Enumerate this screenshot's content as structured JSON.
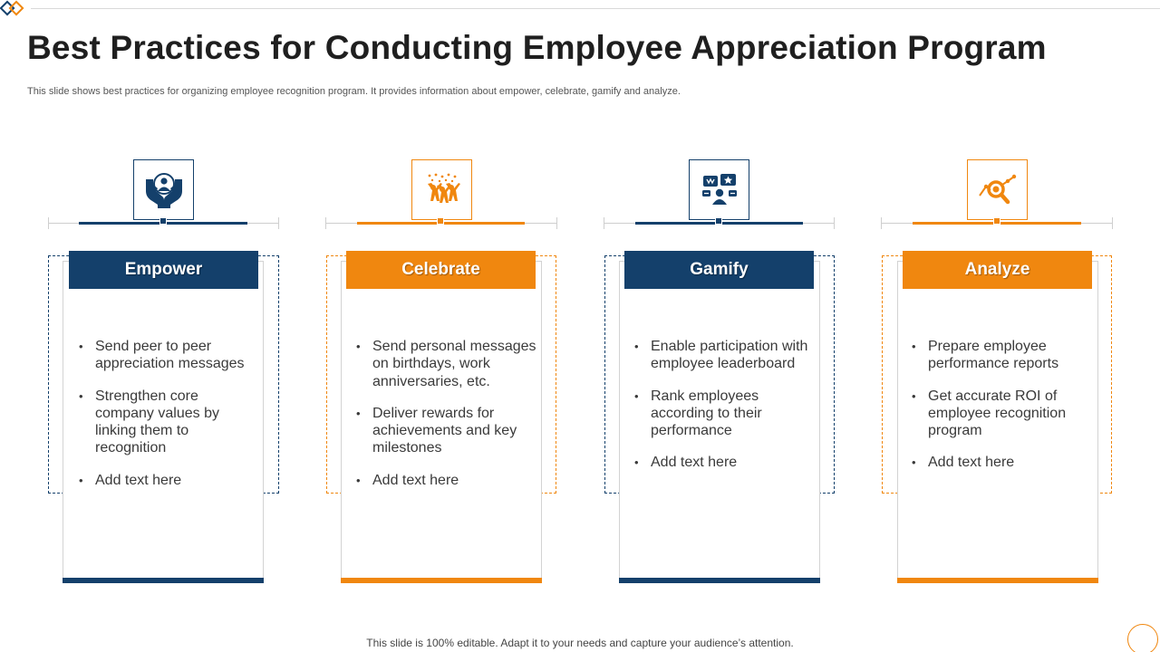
{
  "slide": {
    "title": "Best Practices for Conducting Employee Appreciation Program",
    "subtitle": "This slide shows best practices for organizing employee recognition program. It provides information about empower, celebrate, gamify and analyze.",
    "footer": "This slide is 100% editable. Adapt it to your needs and capture your audience’s attention."
  },
  "colors": {
    "navy": "#14406b",
    "orange": "#f0870f",
    "grey_line": "#cfcfcf"
  },
  "columns": [
    {
      "header": "Empower",
      "icon": "hands-holding-person-icon",
      "accent": "navy",
      "bullets": [
        "Send peer to peer appreciation messages",
        "Strengthen core company values by linking them to recognition",
        "Add text here"
      ]
    },
    {
      "header": "Celebrate",
      "icon": "celebrating-people-icon",
      "accent": "orange",
      "bullets": [
        "Send personal messages on birthdays, work anniversaries, etc.",
        "Deliver rewards for achievements and key milestones",
        "Add text here"
      ]
    },
    {
      "header": "Gamify",
      "icon": "leaderboard-chat-icon",
      "accent": "navy",
      "bullets": [
        "Enable participation with employee leaderboard",
        "Rank employees according to their performance",
        "Add text here"
      ]
    },
    {
      "header": "Analyze",
      "icon": "analytics-magnifier-icon",
      "accent": "orange",
      "bullets": [
        "Prepare employee performance reports",
        "Get accurate ROI of employee recognition program",
        "Add text here"
      ]
    }
  ]
}
